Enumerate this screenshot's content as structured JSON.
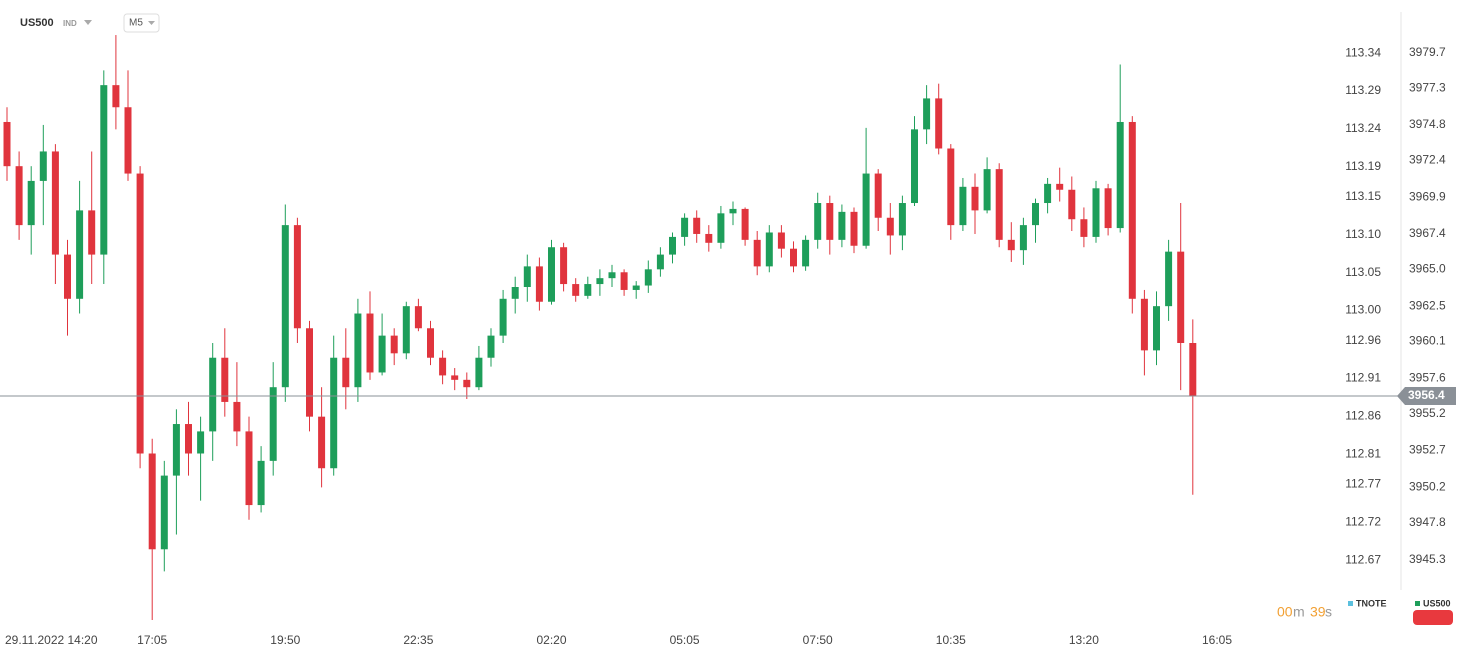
{
  "chart_data": {
    "type": "candlestick",
    "title": "US500",
    "instrument_type": "IND",
    "timeframe": "M5",
    "categories": [
      null,
      "29.11.2022 14:20",
      null,
      null,
      null,
      null,
      null,
      null,
      null,
      null,
      null,
      null,
      "17:05",
      null,
      null,
      null,
      null,
      null,
      null,
      null,
      null,
      null,
      null,
      "19:50",
      null,
      null,
      null,
      null,
      null,
      null,
      null,
      null,
      null,
      null,
      "22:35",
      null,
      null,
      null,
      null,
      null,
      null,
      null,
      null,
      null,
      null,
      "02:20",
      null,
      null,
      null,
      null,
      null,
      null,
      null,
      null,
      null,
      null,
      "05:05",
      null,
      null,
      null,
      null,
      null,
      null,
      null,
      null,
      null,
      null,
      "07:50",
      null,
      null,
      null,
      null,
      null,
      null,
      null,
      null,
      null,
      null,
      "10:35",
      null,
      null,
      null,
      null,
      null,
      null,
      null,
      null,
      null,
      null,
      "13:20",
      null,
      null,
      null,
      null,
      null,
      null,
      null,
      null,
      null,
      null,
      "16:05"
    ],
    "series": [
      {
        "name": "US500",
        "up_color": "#1e9e5a",
        "down_color": "#e0343d",
        "color": "#1e9e5a",
        "open": [
          3975,
          3972,
          3968,
          3971,
          3973,
          3966,
          3963,
          3969,
          3966,
          3977.5,
          3976,
          3971.5,
          3952.5,
          3946,
          3951,
          3954.5,
          3952.5,
          3954,
          3959,
          3956,
          3954,
          3949,
          3952,
          3957,
          3968,
          3961,
          3955,
          3951.5,
          3959,
          3957,
          3962,
          3958,
          3960.5,
          3959.3,
          3962.5,
          3961,
          3959,
          3957.8,
          3957.5,
          3957,
          3959,
          3960.5,
          3963,
          3963.8,
          3965.2,
          3962.8,
          3966.5,
          3964,
          3963.2,
          3964,
          3964.4,
          3964.8,
          3963.6,
          3963.9,
          3965,
          3966,
          3967.2,
          3968.5,
          3967.4,
          3966.8,
          3968.8,
          3969.1,
          3967,
          3965.2,
          3967.5,
          3966.4,
          3965.2,
          3967,
          3969.5,
          3967,
          3968.9,
          3966.6,
          3971.5,
          3968.5,
          3967.3,
          3969.5,
          3974.5,
          3976.6,
          3973.2,
          3968,
          3970.6,
          3969,
          3971.8,
          3967,
          3966.3,
          3968,
          3969.5,
          3970.8,
          3970.4,
          3968.4,
          3967.2,
          3970.5,
          3967.8,
          3975,
          3963,
          3959.5,
          3962.5,
          3966.2,
          3960,
          null,
          null
        ],
        "high": [
          3976,
          3973,
          3972,
          3974.8,
          3973.5,
          3967,
          3971,
          3973,
          3978.5,
          3980.9,
          3978.5,
          3972,
          3953.5,
          3952,
          3955.5,
          3956,
          3955,
          3960,
          3961,
          3958.7,
          3955,
          3953,
          3958.7,
          3969.4,
          3968.5,
          3961.5,
          3957,
          3960.5,
          3961,
          3963,
          3963.5,
          3962,
          3961,
          3962.8,
          3963,
          3961.5,
          3959.5,
          3958.3,
          3958,
          3959.8,
          3961,
          3963.6,
          3964.5,
          3966,
          3965.8,
          3967,
          3966.8,
          3964.4,
          3964.5,
          3965,
          3965.3,
          3965,
          3964.2,
          3965.6,
          3966.5,
          3967.5,
          3968.8,
          3969,
          3968,
          3969.3,
          3969.6,
          3969.2,
          3967.6,
          3968,
          3968,
          3966.9,
          3967.3,
          3970.2,
          3970,
          3969.4,
          3969.2,
          3974.6,
          3971.8,
          3969.5,
          3970,
          3975.4,
          3977.5,
          3977.6,
          3973.5,
          3971.2,
          3971.5,
          3972.6,
          3972.2,
          3968.2,
          3968.5,
          3969.8,
          3971.2,
          3971.9,
          3971.3,
          3969.2,
          3971,
          3970.8,
          3978.9,
          3975.4,
          3963.6,
          3963.5,
          3967,
          3969.5,
          3961.6,
          null,
          null
        ],
        "low": [
          3971,
          3967,
          3966,
          3968,
          3964,
          3960.5,
          3962,
          3964,
          3964,
          3974.5,
          3971,
          3951.5,
          3941.2,
          3944.5,
          3947,
          3951,
          3949.3,
          3952,
          3955,
          3953,
          3948,
          3948.5,
          3951,
          3956,
          3960,
          3954,
          3950.2,
          3951,
          3955.5,
          3956,
          3957.5,
          3957.8,
          3958.5,
          3958.9,
          3960.8,
          3958.5,
          3957.2,
          3956.8,
          3956.2,
          3956.8,
          3958.4,
          3960,
          3962,
          3962.8,
          3962.2,
          3962.6,
          3963.5,
          3962.8,
          3963,
          3963.2,
          3963.8,
          3963.2,
          3963,
          3963.4,
          3964.5,
          3965.4,
          3966.6,
          3966.8,
          3966.2,
          3966.4,
          3968,
          3966.6,
          3964.6,
          3964.8,
          3965.8,
          3964.8,
          3964.9,
          3966.4,
          3966,
          3966.5,
          3966.1,
          3966.4,
          3967.6,
          3966,
          3966.3,
          3969.3,
          3973.5,
          3972.8,
          3967,
          3967.6,
          3967.4,
          3968.8,
          3966.5,
          3965.5,
          3965.3,
          3966.8,
          3968.8,
          3969.6,
          3967.6,
          3966.5,
          3966.8,
          3967.3,
          3967.5,
          3962,
          3957.8,
          3958.5,
          3961.5,
          3956.8,
          3949.7,
          null,
          null
        ],
        "close": [
          3972,
          3968,
          3971,
          3973,
          3966,
          3963,
          3969,
          3966,
          3977.5,
          3976,
          3971.5,
          3952.5,
          3946,
          3951,
          3954.5,
          3952.5,
          3954,
          3959,
          3956,
          3954,
          3949,
          3952,
          3957,
          3968,
          3961,
          3955,
          3951.5,
          3959,
          3957,
          3962,
          3958,
          3960.5,
          3959.3,
          3962.5,
          3961,
          3959,
          3957.8,
          3957.5,
          3957,
          3959,
          3960.5,
          3963,
          3963.8,
          3965.2,
          3962.8,
          3966.5,
          3964,
          3963.2,
          3964,
          3964.4,
          3964.8,
          3963.6,
          3963.9,
          3965,
          3966,
          3967.2,
          3968.5,
          3967.4,
          3966.8,
          3968.8,
          3969.1,
          3967,
          3965.2,
          3967.5,
          3966.4,
          3965.2,
          3967,
          3969.5,
          3967,
          3968.9,
          3966.6,
          3971.5,
          3968.5,
          3967.3,
          3969.5,
          3974.5,
          3976.6,
          3973.2,
          3968,
          3970.6,
          3969,
          3971.8,
          3967,
          3966.3,
          3968,
          3969.5,
          3970.8,
          3970.4,
          3968.4,
          3967.2,
          3970.5,
          3967.8,
          3975,
          3963,
          3959.5,
          3962.5,
          3966.2,
          3960,
          3956.4,
          null,
          null
        ]
      },
      {
        "name": "TNOTE",
        "color": "#5bc0de",
        "axis": "y2"
      }
    ],
    "ylim": [
      3941.2,
      3982.6
    ],
    "yticks": [
      3979.7,
      3977.3,
      3974.8,
      3972.4,
      3969.9,
      3967.4,
      {
        "value": 3965,
        "label": "3965.0"
      },
      3962.5,
      3960.1,
      3957.6,
      3955.2,
      3952.7,
      3950.2,
      3947.8,
      3945.3
    ],
    "y2lim": [
      112.591,
      113.397
    ],
    "y2ticks": [
      113.34,
      113.29,
      113.24,
      113.19,
      113.15,
      {
        "value": 113.1,
        "label": "113.10"
      },
      113.05,
      {
        "value": 113,
        "label": "113.00"
      },
      112.96,
      112.91,
      112.86,
      112.81,
      112.77,
      112.72,
      112.67
    ],
    "last_price": 3956.4,
    "grid": false,
    "legend_position": "bottom-right",
    "countdown": {
      "minutes": "00",
      "minutes_unit": "m",
      "seconds": "39",
      "seconds_unit": "s"
    }
  }
}
